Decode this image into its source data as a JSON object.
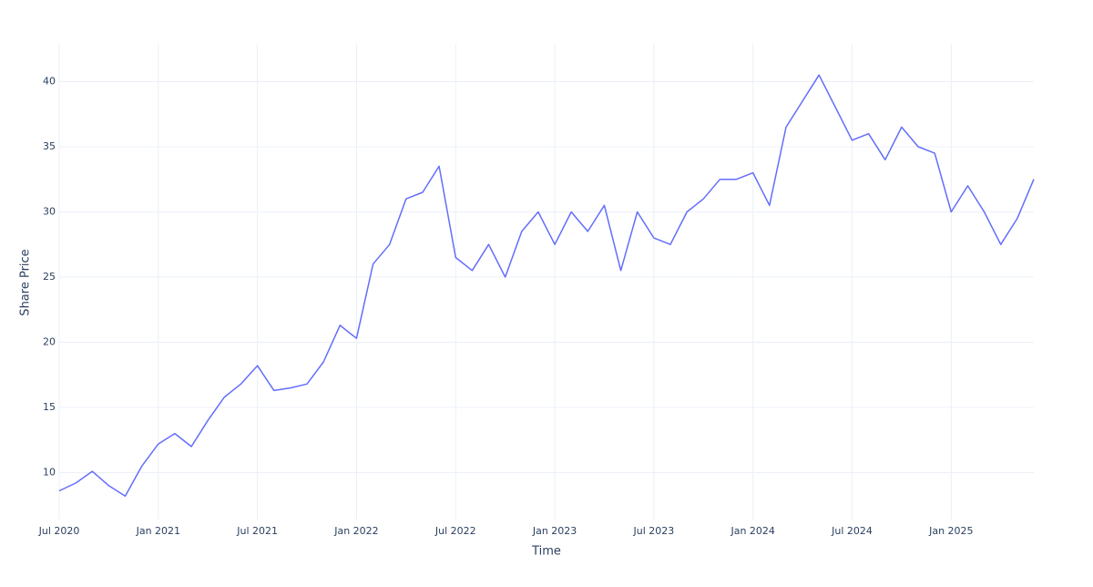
{
  "chart_data": {
    "type": "line",
    "x_label": "Time",
    "y_label": "Share Price",
    "x": [
      "2020-07",
      "2020-08",
      "2020-09",
      "2020-10",
      "2020-11",
      "2020-12",
      "2021-01",
      "2021-02",
      "2021-03",
      "2021-04",
      "2021-05",
      "2021-06",
      "2021-07",
      "2021-08",
      "2021-09",
      "2021-10",
      "2021-11",
      "2021-12",
      "2022-01",
      "2022-02",
      "2022-03",
      "2022-04",
      "2022-05",
      "2022-06",
      "2022-07",
      "2022-08",
      "2022-09",
      "2022-10",
      "2022-11",
      "2022-12",
      "2023-01",
      "2023-02",
      "2023-03",
      "2023-04",
      "2023-05",
      "2023-06",
      "2023-07",
      "2023-08",
      "2023-09",
      "2023-10",
      "2023-11",
      "2023-12",
      "2024-01",
      "2024-02",
      "2024-03",
      "2024-04",
      "2024-05",
      "2024-06",
      "2024-07",
      "2024-08",
      "2024-09",
      "2024-10",
      "2024-11",
      "2024-12",
      "2025-01",
      "2025-02",
      "2025-03",
      "2025-04",
      "2025-05",
      "2025-06"
    ],
    "series": [
      {
        "color": "#636efa",
        "values": [
          8.6,
          9.2,
          10.1,
          9.0,
          8.2,
          10.5,
          12.2,
          13.0,
          12.0,
          14.0,
          15.8,
          16.8,
          18.2,
          16.3,
          16.5,
          16.8,
          18.5,
          21.3,
          20.3,
          26.0,
          27.5,
          31.0,
          31.5,
          33.5,
          26.5,
          25.5,
          27.5,
          25.0,
          28.5,
          30.0,
          27.5,
          30.0,
          28.5,
          30.5,
          25.5,
          30.0,
          28.0,
          27.5,
          30.0,
          31.0,
          32.5,
          32.5,
          33.0,
          30.5,
          36.5,
          38.5,
          40.5,
          38.0,
          35.5,
          36.0,
          34.0,
          36.5,
          35.0,
          34.5,
          30.0,
          32.0,
          30.0,
          27.5,
          29.5,
          32.5
        ]
      }
    ],
    "xlim": [
      "2020-07",
      "2025-06"
    ],
    "xticks": [
      {
        "value": "2020-07",
        "label": "Jul 2020"
      },
      {
        "value": "2021-01",
        "label": "Jan 2021"
      },
      {
        "value": "2021-07",
        "label": "Jul 2021"
      },
      {
        "value": "2022-01",
        "label": "Jan 2022"
      },
      {
        "value": "2022-07",
        "label": "Jul 2022"
      },
      {
        "value": "2023-01",
        "label": "Jan 2023"
      },
      {
        "value": "2023-07",
        "label": "Jul 2023"
      },
      {
        "value": "2024-01",
        "label": "Jan 2024"
      },
      {
        "value": "2024-07",
        "label": "Jul 2024"
      },
      {
        "value": "2025-01",
        "label": "Jan 2025"
      }
    ],
    "ylim": [
      6.4,
      42.9
    ],
    "yticks": [
      10,
      15,
      20,
      25,
      30,
      35,
      40
    ],
    "grid": true
  }
}
